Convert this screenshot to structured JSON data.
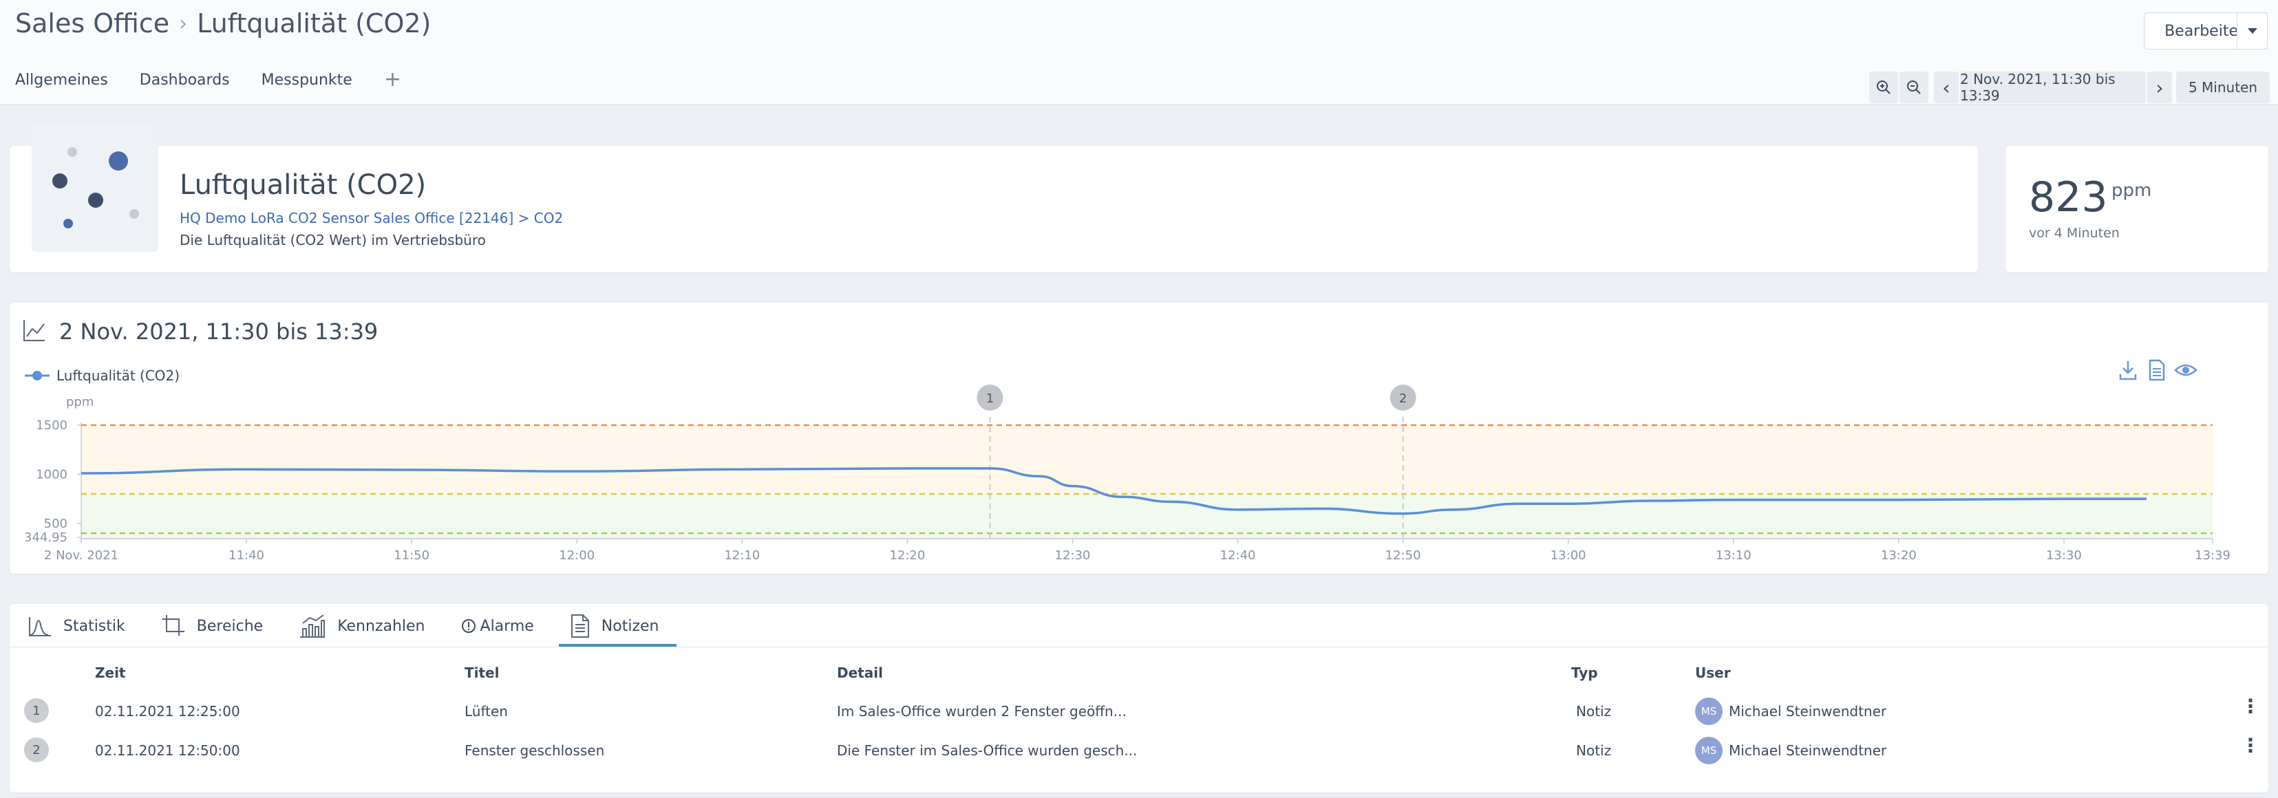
{
  "breadcrumb": {
    "parent": "Sales Office",
    "current": "Luftqualität (CO2)"
  },
  "header": {
    "edit_label": "Bearbeiten"
  },
  "top_tabs": [
    "Allgemeines",
    "Dashboards",
    "Messpunkte"
  ],
  "timebar": {
    "range": "2 Nov. 2021, 11:30 bis 13:39",
    "interval": "5 Minuten"
  },
  "sensor": {
    "title": "Luftqualität (CO2)",
    "source_link": "HQ Demo LoRa CO2 Sensor Sales Office [22146] > CO2",
    "description": "Die Luftqualität (CO2 Wert) im Vertriebsbüro"
  },
  "kpi": {
    "value": "823",
    "unit": "ppm",
    "ago": "vor 4 Minuten"
  },
  "chart_title": "2 Nov. 2021, 11:30 bis 13:39",
  "chart_data": {
    "type": "line",
    "ylabel": "ppm",
    "ylim": [
      344.95,
      1500
    ],
    "ytick_labels": [
      "1500",
      "1000",
      "500",
      "344.95"
    ],
    "xtick_labels": [
      "2 Nov. 2021",
      "11:40",
      "11:50",
      "12:00",
      "12:10",
      "12:20",
      "12:30",
      "12:40",
      "12:50",
      "13:00",
      "13:10",
      "13:20",
      "13:30",
      "13:39"
    ],
    "thresholds": [
      {
        "value": 1500,
        "color": "#f08a4b"
      },
      {
        "value": 800,
        "color": "#e6c53a"
      },
      {
        "value": 400,
        "color": "#9ccc65"
      }
    ],
    "series": [
      {
        "name": "Luftqualität (CO2)",
        "color": "#5b8fd9",
        "x": [
          "11:30",
          "11:40",
          "11:50",
          "12:00",
          "12:10",
          "12:20",
          "12:25",
          "12:28",
          "12:30",
          "12:33",
          "12:36",
          "12:40",
          "12:45",
          "12:50",
          "12:53",
          "12:57",
          "13:00",
          "13:05",
          "13:10",
          "13:20",
          "13:30",
          "13:35"
        ],
        "values": [
          1010,
          1050,
          1045,
          1030,
          1050,
          1060,
          1060,
          980,
          880,
          770,
          720,
          640,
          650,
          600,
          640,
          700,
          700,
          730,
          740,
          740,
          750,
          750
        ]
      }
    ],
    "notes": [
      "1",
      "2"
    ],
    "note_times": [
      "12:25",
      "12:50"
    ]
  },
  "bottom_tabs": [
    "Statistik",
    "Bereiche",
    "Kennzahlen",
    "Alarme",
    "Notizen"
  ],
  "notes_table": {
    "columns": [
      "Zeit",
      "Titel",
      "Detail",
      "Typ",
      "User"
    ],
    "rows": [
      {
        "n": "1",
        "time": "02.11.2021 12:25:00",
        "title": "Lüften",
        "detail": "Im Sales-Office wurden 2 Fenster geöffn...",
        "type": "Notiz",
        "initials": "MS",
        "user": "Michael Steinwendtner"
      },
      {
        "n": "2",
        "time": "02.11.2021 12:50:00",
        "title": "Fenster geschlossen",
        "detail": "Die Fenster im Sales-Office wurden gesch...",
        "type": "Notiz",
        "initials": "MS",
        "user": "Michael Steinwendtner"
      }
    ]
  }
}
